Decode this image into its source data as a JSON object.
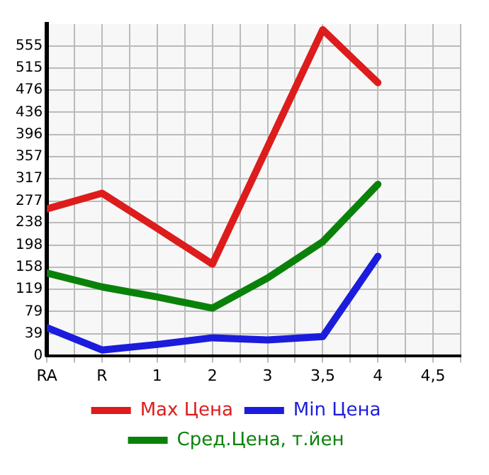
{
  "chart_data": {
    "type": "line",
    "categories": [
      "RA",
      "R",
      "1",
      "2",
      "3",
      "3,5",
      "4",
      "4,5"
    ],
    "series": [
      {
        "name": "Max Цена",
        "color": "#dd1c1c",
        "values": [
          263,
          291,
          228,
          164,
          374,
          584,
          489,
          null
        ]
      },
      {
        "name": "Min Цена",
        "color": "#1c1cdd",
        "values": [
          50,
          10,
          20,
          32,
          28,
          34,
          178,
          null
        ]
      },
      {
        "name": "Сред.Цена, т.йен",
        "color": "#0a820a",
        "values": [
          148,
          123,
          105,
          85,
          139,
          204,
          307,
          null
        ]
      }
    ],
    "ylim": [
      0,
      594
    ],
    "yticks": [
      0,
      39,
      79,
      119,
      158,
      198,
      238,
      277,
      317,
      357,
      396,
      436,
      476,
      515,
      555
    ],
    "grid": true,
    "legend": "bottom",
    "marker": "none",
    "line_style": "solid"
  }
}
